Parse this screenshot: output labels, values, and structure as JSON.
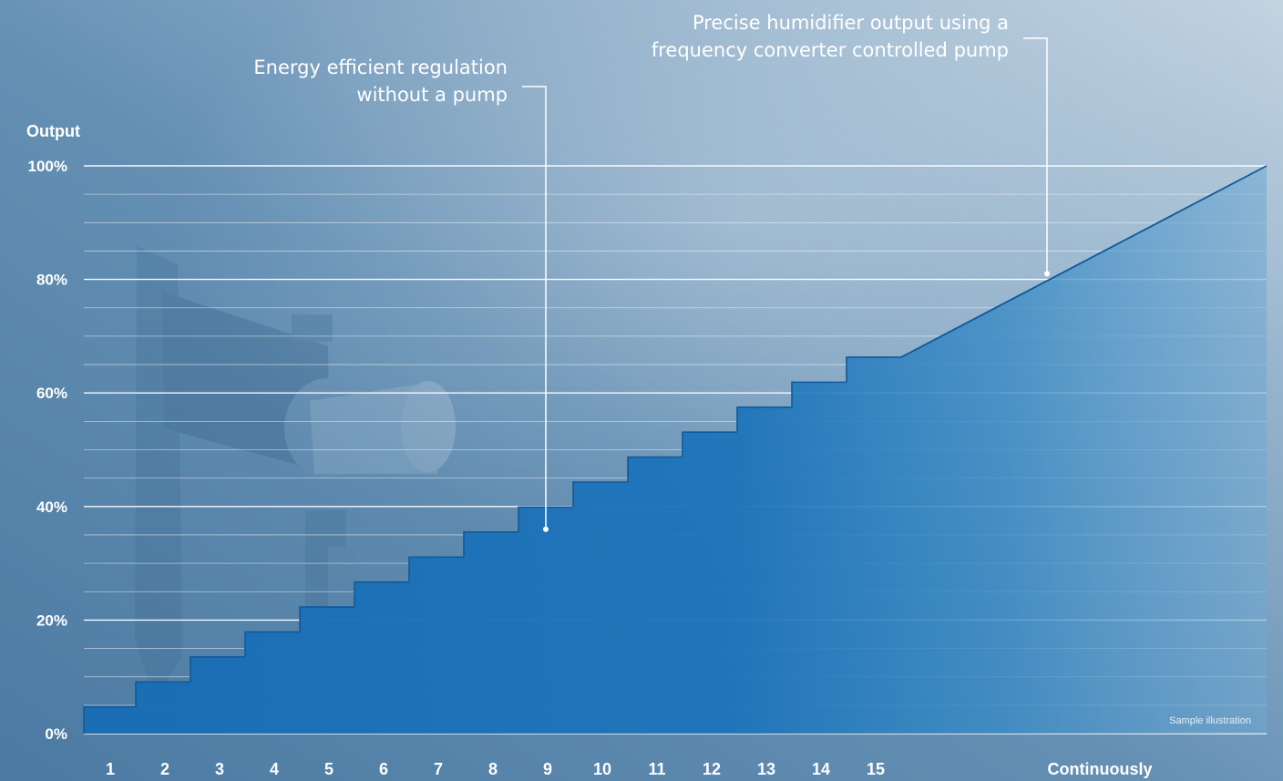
{
  "chart_data": {
    "type": "area",
    "ylabel": "Output",
    "xlabel": "",
    "yticks": [
      "100%",
      "80%",
      "60%",
      "40%",
      "20%",
      "0%"
    ],
    "ylim": [
      0,
      100
    ],
    "grid": true,
    "x_categories": [
      "1",
      "2",
      "3",
      "4",
      "5",
      "6",
      "7",
      "8",
      "9",
      "10",
      "11",
      "12",
      "13",
      "14",
      "15",
      "Continuously"
    ],
    "series": [
      {
        "stages": [
          1,
          2,
          3,
          4,
          5,
          6,
          7,
          8,
          9,
          10,
          11,
          12,
          13,
          14,
          15
        ],
        "values": [
          4.7,
          9.1,
          13.5,
          17.9,
          22.3,
          26.7,
          31.1,
          35.5,
          39.9,
          44.3,
          48.7,
          53.1,
          57.5,
          61.9,
          66.3
        ]
      },
      {
        "x": [
          "15",
          "Continuously"
        ],
        "values": [
          66.3,
          100
        ]
      }
    ],
    "annotations": [
      {
        "lines": [
          "Energy efficient regulation",
          "without a pump"
        ],
        "target": {
          "x": "9",
          "y": 36
        }
      },
      {
        "lines": [
          "Precise humidifier output using a",
          "frequency converter controlled pump"
        ],
        "target": {
          "x": "Continuously",
          "y": 81
        }
      }
    ],
    "note": "Sample illustration"
  },
  "colors": {
    "background_dark": "#4a7aa3",
    "background_light": "#b7ccdc",
    "area_fill": "#1f72b8",
    "area_edge": "#0f5a9c",
    "grid": "#ffffff",
    "text": "#ffffff"
  }
}
